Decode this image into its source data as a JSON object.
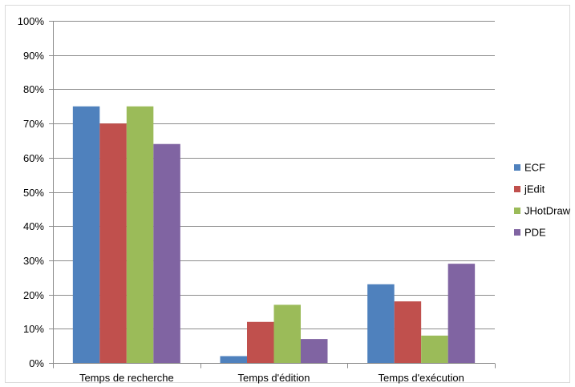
{
  "chart_data": {
    "type": "bar",
    "categories": [
      "Temps de recherche",
      "Temps d'édition",
      "Temps d'exécution"
    ],
    "series": [
      {
        "name": "ECF",
        "color": "#4F81BD",
        "values": [
          0.75,
          0.02,
          0.23
        ]
      },
      {
        "name": "jEdit",
        "color": "#C0504D",
        "values": [
          0.7,
          0.12,
          0.18
        ]
      },
      {
        "name": "JHotDraw",
        "color": "#9BBB59",
        "values": [
          0.75,
          0.17,
          0.08
        ]
      },
      {
        "name": "PDE",
        "color": "#8064A2",
        "values": [
          0.64,
          0.07,
          0.29
        ]
      }
    ],
    "ylim": [
      0,
      1
    ],
    "ytick_labels": [
      "0%",
      "10%",
      "20%",
      "30%",
      "40%",
      "50%",
      "60%",
      "70%",
      "80%",
      "90%",
      "100%"
    ],
    "grid": true,
    "legend_position": "right"
  }
}
